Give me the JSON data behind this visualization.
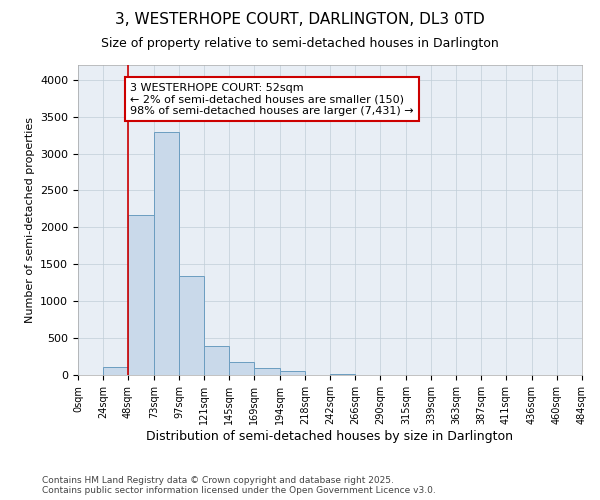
{
  "title": "3, WESTERHOPE COURT, DARLINGTON, DL3 0TD",
  "subtitle": "Size of property relative to semi-detached houses in Darlington",
  "xlabel": "Distribution of semi-detached houses by size in Darlington",
  "ylabel": "Number of semi-detached properties",
  "footnote": "Contains HM Land Registry data © Crown copyright and database right 2025.\nContains public sector information licensed under the Open Government Licence v3.0.",
  "bar_edges": [
    0,
    24,
    48,
    73,
    97,
    121,
    145,
    169,
    194,
    218,
    242,
    266,
    290,
    315,
    339,
    363,
    387,
    411,
    436,
    460,
    484
  ],
  "bar_heights": [
    0,
    115,
    2170,
    3290,
    1340,
    390,
    175,
    100,
    50,
    5,
    20,
    0,
    0,
    0,
    0,
    0,
    0,
    0,
    0,
    0
  ],
  "bar_color": "#c9d9ea",
  "bar_edge_color": "#6b9dc0",
  "red_line_x": 48,
  "annotation_text": "3 WESTERHOPE COURT: 52sqm\n← 2% of semi-detached houses are smaller (150)\n98% of semi-detached houses are larger (7,431) →",
  "annotation_box_color": "#ffffff",
  "annotation_border_color": "#cc0000",
  "ylim": [
    0,
    4200
  ],
  "yticks": [
    0,
    500,
    1000,
    1500,
    2000,
    2500,
    3000,
    3500,
    4000
  ],
  "background_color": "#e8eef5",
  "tick_labels": [
    "0sqm",
    "24sqm",
    "48sqm",
    "73sqm",
    "97sqm",
    "121sqm",
    "145sqm",
    "169sqm",
    "194sqm",
    "218sqm",
    "242sqm",
    "266sqm",
    "290sqm",
    "315sqm",
    "339sqm",
    "363sqm",
    "387sqm",
    "411sqm",
    "436sqm",
    "460sqm",
    "484sqm"
  ],
  "title_fontsize": 11,
  "subtitle_fontsize": 9,
  "xlabel_fontsize": 9,
  "ylabel_fontsize": 8,
  "footnote_fontsize": 6.5,
  "tick_fontsize": 7,
  "annotation_fontsize": 8
}
